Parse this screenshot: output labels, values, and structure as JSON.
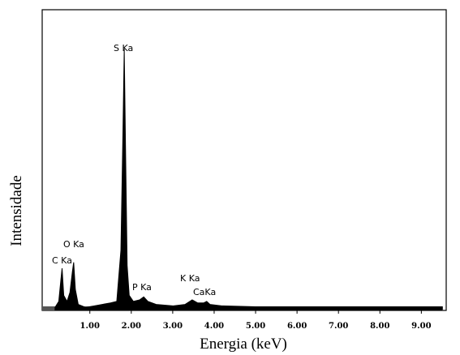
{
  "chart_data": {
    "type": "area",
    "x_label": "Energia (keV)",
    "y_label": "Intensidade",
    "x": [
      0.16,
      0.25,
      0.3,
      0.33,
      0.37,
      0.45,
      0.52,
      0.58,
      0.61,
      0.65,
      0.72,
      0.9,
      1.1,
      1.3,
      1.5,
      1.65,
      1.75,
      1.8,
      1.83,
      1.86,
      1.9,
      1.95,
      2.05,
      2.2,
      2.3,
      2.4,
      2.6,
      3.0,
      3.3,
      3.47,
      3.6,
      3.75,
      3.82,
      3.9,
      4.2,
      5,
      6,
      7,
      8,
      9,
      9.5
    ],
    "values": [
      1,
      3,
      10,
      14,
      5,
      3,
      6,
      13,
      16,
      7,
      2,
      1,
      1.5,
      2,
      2.5,
      3,
      20,
      60,
      87,
      55,
      15,
      5,
      3,
      3.5,
      4.5,
      3,
      2,
      1.5,
      2,
      3.5,
      2.5,
      2.5,
      3,
      2,
      1.5,
      1.2,
      1.2,
      1.2,
      1.2,
      1.2,
      1.2
    ],
    "color": "#000000",
    "xlim": [
      -0.15,
      9.6
    ],
    "ylim": [
      0,
      100
    ],
    "xticks": [
      {
        "value": 1,
        "label": "1.00"
      },
      {
        "value": 2,
        "label": "2.00"
      },
      {
        "value": 3,
        "label": "3.00"
      },
      {
        "value": 4,
        "label": "4.00"
      },
      {
        "value": 5,
        "label": "5.00"
      },
      {
        "value": 6,
        "label": "6.00"
      },
      {
        "value": 7,
        "label": "7.00"
      },
      {
        "value": 8,
        "label": "8.00"
      },
      {
        "value": 9,
        "label": "9.00"
      }
    ],
    "annotations": [
      "S Ka",
      "O Ka",
      "C Ka",
      "P Ka",
      "K Ka",
      "CaKa"
    ]
  }
}
